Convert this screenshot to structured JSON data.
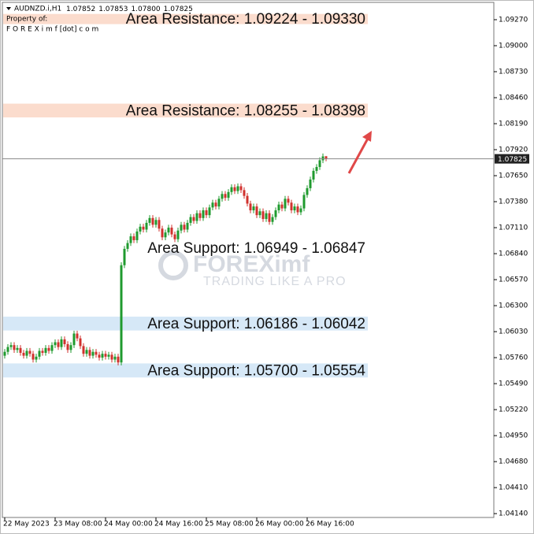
{
  "chart_data": {
    "type": "candlestick",
    "symbol": "AUDNZD.i,H1",
    "legend_values": [
      "1.07852",
      "1.07853",
      "1.07800",
      "1.07825"
    ],
    "owner_caption": "Property of:",
    "owner_site": "F O R E X i m f [dot] c o m",
    "watermark": "FOREXimf",
    "watermark_tagline": "TRADING LIKE A PRO",
    "up_color": "#1f9a2e",
    "down_color": "#d0312d",
    "categories": [
      "22 May 2023",
      null,
      null,
      null,
      null,
      null,
      null,
      null,
      null,
      null,
      null,
      null,
      null,
      null,
      null,
      null,
      "23 May 08:00",
      null,
      null,
      null,
      null,
      null,
      null,
      null,
      null,
      null,
      null,
      null,
      null,
      null,
      null,
      null,
      "24 May 00:00",
      null,
      null,
      null,
      null,
      null,
      null,
      null,
      null,
      null,
      null,
      null,
      null,
      null,
      null,
      null,
      "24 May 16:00",
      null,
      null,
      null,
      null,
      null,
      null,
      null,
      null,
      null,
      null,
      null,
      null,
      null,
      null,
      null,
      "25 May 08:00",
      null,
      null,
      null,
      null,
      null,
      null,
      null,
      null,
      null,
      null,
      null,
      null,
      null,
      null,
      null,
      "26 May 00:00",
      null,
      null,
      null,
      null,
      null,
      null,
      null,
      null,
      null,
      null,
      null,
      null,
      null,
      null,
      null,
      "26 May 16:00",
      null,
      null,
      null,
      null,
      null,
      null
    ],
    "open": [
      1.0578,
      1.0582,
      1.0587,
      1.0589,
      1.0584,
      1.0586,
      1.0581,
      1.0578,
      1.0583,
      1.058,
      1.0574,
      1.0577,
      1.0583,
      1.0581,
      1.0586,
      1.0583,
      1.0589,
      1.0592,
      1.0587,
      1.0595,
      1.059,
      1.0584,
      1.0589,
      1.0601,
      1.0596,
      1.0588,
      1.058,
      1.0584,
      1.0578,
      1.0582,
      1.0579,
      1.0576,
      1.058,
      1.0577,
      1.0579,
      1.0574,
      1.0577,
      1.0571,
      1.0672,
      1.0689,
      1.0695,
      1.0702,
      1.0698,
      1.0707,
      1.0712,
      1.0709,
      1.0716,
      1.0721,
      1.0714,
      1.0719,
      1.071,
      1.0701,
      1.0706,
      1.0711,
      1.0704,
      1.0699,
      1.0708,
      1.0714,
      1.0709,
      1.0716,
      1.0722,
      1.0718,
      1.0726,
      1.0721,
      1.0729,
      1.0724,
      1.0732,
      1.0737,
      1.0733,
      1.0741,
      1.0746,
      1.0742,
      1.0748,
      1.0753,
      1.0749,
      1.0754,
      1.075,
      1.0744,
      1.0736,
      1.0729,
      1.0733,
      1.0724,
      1.0728,
      1.072,
      1.0726,
      1.0717,
      1.0722,
      1.0729,
      1.0735,
      1.0731,
      1.0741,
      1.0737,
      1.0729,
      1.0733,
      1.0727,
      1.0731,
      1.0745,
      1.0752,
      1.0761,
      1.077,
      1.0774,
      1.0781,
      1.07852
    ],
    "high": [
      1.0585,
      1.059,
      1.0592,
      1.0592,
      1.0589,
      1.0589,
      1.0584,
      1.0586,
      1.0586,
      1.0583,
      1.058,
      1.0586,
      1.0586,
      1.0589,
      1.0589,
      1.0592,
      1.0595,
      1.0595,
      1.0598,
      1.0598,
      1.0593,
      1.0592,
      1.0604,
      1.0604,
      1.0599,
      1.0591,
      1.0587,
      1.0587,
      1.0585,
      1.0585,
      1.0582,
      1.0583,
      1.0583,
      1.0582,
      1.0582,
      1.058,
      1.058,
      1.0675,
      1.0692,
      1.0698,
      1.0705,
      1.0705,
      1.071,
      1.0715,
      1.0715,
      1.0719,
      1.0724,
      1.0724,
      1.0722,
      1.0722,
      1.0713,
      1.0709,
      1.0714,
      1.0714,
      1.0707,
      1.0711,
      1.0717,
      1.0717,
      1.0719,
      1.0725,
      1.0725,
      1.0729,
      1.0729,
      1.0732,
      1.0732,
      1.0735,
      1.074,
      1.074,
      1.0744,
      1.0749,
      1.0749,
      1.0751,
      1.0756,
      1.0756,
      1.0757,
      1.0757,
      1.0753,
      1.0747,
      1.0739,
      1.0736,
      1.0736,
      1.0731,
      1.0731,
      1.0729,
      1.0729,
      1.0725,
      1.0732,
      1.0738,
      1.0738,
      1.0744,
      1.0744,
      1.074,
      1.0736,
      1.0736,
      1.0734,
      1.0748,
      1.0755,
      1.0764,
      1.0773,
      1.0777,
      1.0784,
      1.0788,
      1.07853
    ],
    "low": [
      1.0575,
      1.0579,
      1.0584,
      1.0581,
      1.0581,
      1.0578,
      1.0575,
      1.0575,
      1.0577,
      1.0571,
      1.0571,
      1.0574,
      1.0578,
      1.0578,
      1.058,
      1.058,
      1.0586,
      1.0584,
      1.0584,
      1.0587,
      1.0581,
      1.0581,
      1.0586,
      1.0593,
      1.0585,
      1.0577,
      1.0577,
      1.0575,
      1.0575,
      1.0576,
      1.0573,
      1.0573,
      1.0574,
      1.0574,
      1.0571,
      1.0571,
      1.0568,
      1.0568,
      1.0669,
      1.0686,
      1.0692,
      1.0695,
      1.0695,
      1.0704,
      1.0706,
      1.0706,
      1.0713,
      1.0711,
      1.0711,
      1.0707,
      1.0698,
      1.0698,
      1.0703,
      1.0701,
      1.0696,
      1.0696,
      1.0705,
      1.0706,
      1.0706,
      1.0713,
      1.0715,
      1.0715,
      1.0718,
      1.0718,
      1.0721,
      1.0721,
      1.0729,
      1.073,
      1.073,
      1.0738,
      1.0739,
      1.0739,
      1.0745,
      1.0746,
      1.0746,
      1.0747,
      1.0741,
      1.0733,
      1.0726,
      1.0726,
      1.0721,
      1.0721,
      1.0717,
      1.0717,
      1.0714,
      1.0714,
      1.0719,
      1.0726,
      1.0728,
      1.0728,
      1.0734,
      1.0726,
      1.0726,
      1.0724,
      1.0724,
      1.0728,
      1.0742,
      1.0749,
      1.0758,
      1.0767,
      1.0771,
      1.0778,
      1.078
    ],
    "close": [
      1.0582,
      1.0587,
      1.0589,
      1.0584,
      1.0586,
      1.0581,
      1.0578,
      1.0583,
      1.058,
      1.0574,
      1.0577,
      1.0583,
      1.0581,
      1.0586,
      1.0583,
      1.0589,
      1.0592,
      1.0587,
      1.0595,
      1.059,
      1.0584,
      1.0589,
      1.0601,
      1.0596,
      1.0588,
      1.058,
      1.0584,
      1.0578,
      1.0582,
      1.0579,
      1.0576,
      1.058,
      1.0577,
      1.0579,
      1.0574,
      1.0577,
      1.0571,
      1.0672,
      1.0689,
      1.0695,
      1.0702,
      1.0698,
      1.0707,
      1.0712,
      1.0709,
      1.0716,
      1.0721,
      1.0714,
      1.0719,
      1.071,
      1.0701,
      1.0706,
      1.0711,
      1.0704,
      1.0699,
      1.0708,
      1.0714,
      1.0709,
      1.0716,
      1.0722,
      1.0718,
      1.0726,
      1.0721,
      1.0729,
      1.0724,
      1.0732,
      1.0737,
      1.0733,
      1.0741,
      1.0746,
      1.0742,
      1.0748,
      1.0753,
      1.0749,
      1.0754,
      1.075,
      1.0744,
      1.0736,
      1.0729,
      1.0733,
      1.0724,
      1.0728,
      1.072,
      1.0726,
      1.0717,
      1.0722,
      1.0729,
      1.0735,
      1.0731,
      1.0741,
      1.0737,
      1.0729,
      1.0733,
      1.0727,
      1.0731,
      1.0745,
      1.0752,
      1.0761,
      1.077,
      1.0774,
      1.0781,
      1.0785,
      1.07825
    ],
    "current_price": {
      "value": 1.07825,
      "label": "1.07825"
    },
    "zones": [
      {
        "label": "Area Resistance: 1.09224 - 1.09330",
        "low": 1.09224,
        "high": 1.0933,
        "color": "#fbdccd"
      },
      {
        "label": "Area Resistance: 1.08255 - 1.08398",
        "low": 1.08255,
        "high": 1.08398,
        "color": "#fbdccd"
      },
      {
        "label": "Area Support: 1.06949 - 1.06847",
        "low": 1.06847,
        "high": 1.06949
      },
      {
        "label": "Area Support: 1.06186 - 1.06042",
        "low": 1.06042,
        "high": 1.06186,
        "color": "#d6e8f7"
      },
      {
        "label": "Area Support: 1.05700 - 1.05554",
        "low": 1.05554,
        "high": 1.057,
        "color": "#d6e8f7"
      }
    ],
    "ylim": [
      1.041,
      1.0945
    ],
    "yticks": [
      {
        "value": 1.0927,
        "label": "1.09270"
      },
      {
        "value": 1.09,
        "label": "1.09000"
      },
      {
        "value": 1.0873,
        "label": "1.08730"
      },
      {
        "value": 1.0846,
        "label": "1.08460"
      },
      {
        "value": 1.0819,
        "label": "1.08190"
      },
      {
        "value": 1.0792,
        "label": "1.07920"
      },
      {
        "value": 1.0765,
        "label": "1.07650"
      },
      {
        "value": 1.0738,
        "label": "1.07380"
      },
      {
        "value": 1.0711,
        "label": "1.07110"
      },
      {
        "value": 1.0684,
        "label": "1.06840"
      },
      {
        "value": 1.0657,
        "label": "1.06570"
      },
      {
        "value": 1.063,
        "label": "1.06300"
      },
      {
        "value": 1.0603,
        "label": "1.06030"
      },
      {
        "value": 1.0576,
        "label": "1.05760"
      },
      {
        "value": 1.0549,
        "label": "1.05490"
      },
      {
        "value": 1.0522,
        "label": "1.05220"
      },
      {
        "value": 1.0495,
        "label": "1.04950"
      },
      {
        "value": 1.0468,
        "label": "1.04680"
      },
      {
        "value": 1.0441,
        "label": "1.04410"
      },
      {
        "value": 1.0414,
        "label": "1.04140"
      }
    ]
  }
}
